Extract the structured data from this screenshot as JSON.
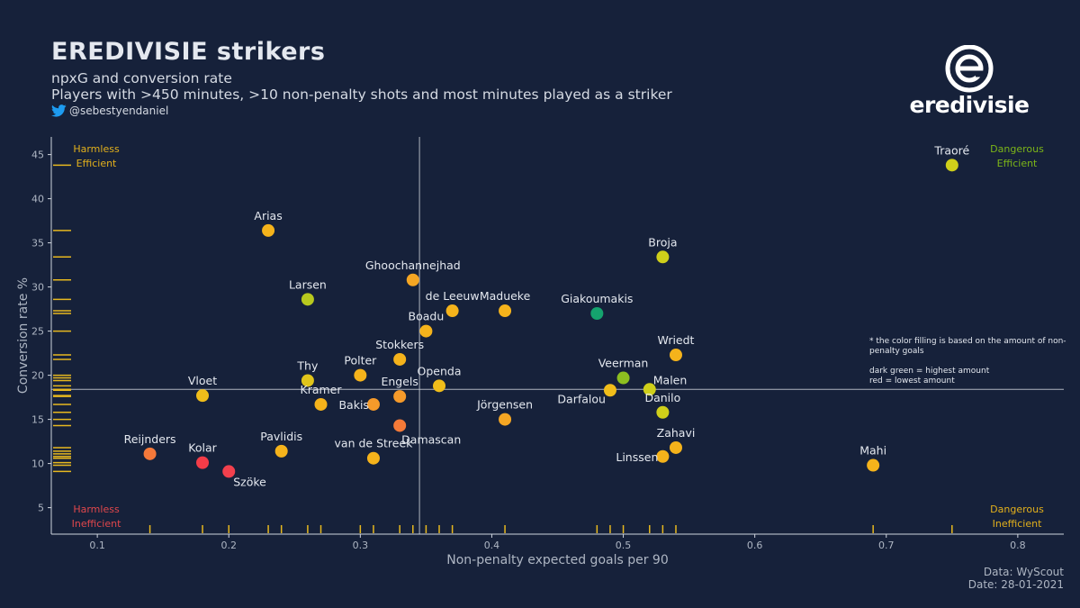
{
  "header": {
    "title": "EREDIVISIE strikers",
    "subtitle1": "npxG and conversion rate",
    "subtitle2": "Players with >450 minutes, >10 non-penalty shots and most minutes played as a striker",
    "handle": "@sebestyendaniel",
    "handle_icon": "twitter-bird-icon"
  },
  "logo": {
    "word": "eredivisie",
    "icon": "eredivisie-e-logo-icon"
  },
  "note": {
    "line1": "* the color filling is based on the amount of non-penalty goals",
    "line2": "dark green = highest amount",
    "line3": "red = lowest amount"
  },
  "credits": {
    "data": "Data: WyScout",
    "date": "Date: 28-01-2021"
  },
  "colors": {
    "background": "#16213a",
    "axis": "#cfd5de",
    "rug": "#e7b81f",
    "harmless_efficient": "#e2b01c",
    "dangerous_efficient": "#7cb518",
    "harmless_inefficient": "#e0474c",
    "dangerous_inefficient": "#e2b01c"
  },
  "chart_data": {
    "type": "scatter",
    "xlabel": "Non-penalty expected goals per 90",
    "ylabel": "Conversion rate %",
    "xlim": [
      0.065,
      0.835
    ],
    "ylim": [
      2.0,
      47.0
    ],
    "xticks": [
      0.1,
      0.2,
      0.3,
      0.4,
      0.5,
      0.6,
      0.7,
      0.8
    ],
    "yticks": [
      5,
      10,
      15,
      20,
      25,
      30,
      35,
      40,
      45
    ],
    "xtick_labels": [
      "0.1",
      "0.2",
      "0.3",
      "0.4",
      "0.5",
      "0.6",
      "0.7",
      "0.8"
    ],
    "ytick_labels": [
      "5",
      "10",
      "15",
      "20",
      "25",
      "30",
      "35",
      "40",
      "45"
    ],
    "reference_lines": {
      "x": 0.345,
      "y": 18.4
    },
    "quadrants": [
      {
        "lines": [
          "Harmless",
          "Efficient"
        ],
        "position": "top-left",
        "color": "#e2b01c"
      },
      {
        "lines": [
          "Dangerous",
          "Efficient"
        ],
        "position": "top-right",
        "color": "#7cb518"
      },
      {
        "lines": [
          "Harmless",
          "Inefficient"
        ],
        "position": "bottom-left",
        "color": "#e0474c"
      },
      {
        "lines": [
          "Dangerous",
          "Inefficient"
        ],
        "position": "bottom-right",
        "color": "#e2b01c"
      }
    ],
    "points": [
      {
        "name": "Traoré",
        "x": 0.75,
        "y": 43.8,
        "color": "#cfcf1a",
        "label": "above"
      },
      {
        "name": "Arias",
        "x": 0.23,
        "y": 36.4,
        "color": "#f5b31b",
        "label": "above"
      },
      {
        "name": "Broja",
        "x": 0.53,
        "y": 33.4,
        "color": "#cfcf1a",
        "label": "above"
      },
      {
        "name": "Ghoochannejhad",
        "x": 0.34,
        "y": 30.8,
        "color": "#f5a623",
        "label": "above"
      },
      {
        "name": "Larsen",
        "x": 0.26,
        "y": 28.6,
        "color": "#b8c91e",
        "label": "above"
      },
      {
        "name": "de Leeuw",
        "x": 0.37,
        "y": 27.3,
        "color": "#f5b31b",
        "label": "above"
      },
      {
        "name": "Madueke",
        "x": 0.41,
        "y": 27.3,
        "color": "#f5b31b",
        "label": "above"
      },
      {
        "name": "Giakoumakis",
        "x": 0.48,
        "y": 27.0,
        "color": "#15a36e",
        "label": "above"
      },
      {
        "name": "Boadu",
        "x": 0.35,
        "y": 25.0,
        "color": "#f5b31b",
        "label": "above"
      },
      {
        "name": "Wriedt",
        "x": 0.54,
        "y": 22.3,
        "color": "#f5b31b",
        "label": "above"
      },
      {
        "name": "Stokkers",
        "x": 0.33,
        "y": 21.8,
        "color": "#f5b31b",
        "label": "above"
      },
      {
        "name": "Polter",
        "x": 0.3,
        "y": 20.0,
        "color": "#f5b31b",
        "label": "above"
      },
      {
        "name": "Veerman",
        "x": 0.5,
        "y": 19.7,
        "color": "#8dbf20",
        "label": "above"
      },
      {
        "name": "Thy",
        "x": 0.26,
        "y": 19.4,
        "color": "#e0c41a",
        "label": "above"
      },
      {
        "name": "Openda",
        "x": 0.36,
        "y": 18.8,
        "color": "#f0bd1a",
        "label": "above"
      },
      {
        "name": "Vloet",
        "x": 0.18,
        "y": 17.7,
        "color": "#f0bd1a",
        "label": "above"
      },
      {
        "name": "Malen",
        "x": 0.52,
        "y": 18.4,
        "color": "#cfcf1a",
        "label": "right"
      },
      {
        "name": "Darfalou",
        "x": 0.49,
        "y": 18.3,
        "color": "#f0bd1a",
        "label": "below-left"
      },
      {
        "name": "Engels",
        "x": 0.33,
        "y": 17.6,
        "color": "#f59a2a",
        "label": "above"
      },
      {
        "name": "Kramer",
        "x": 0.27,
        "y": 16.7,
        "color": "#f5b31b",
        "label": "above"
      },
      {
        "name": "Bakis",
        "x": 0.31,
        "y": 16.7,
        "color": "#f59a2a",
        "label": "left"
      },
      {
        "name": "Danilo",
        "x": 0.53,
        "y": 15.8,
        "color": "#cfcf1a",
        "label": "above"
      },
      {
        "name": "Jörgensen",
        "x": 0.41,
        "y": 15.0,
        "color": "#f5a623",
        "label": "above"
      },
      {
        "name": "Damascan",
        "x": 0.33,
        "y": 14.3,
        "color": "#f57a38",
        "label": "below"
      },
      {
        "name": "Zahavi",
        "x": 0.54,
        "y": 11.8,
        "color": "#f5b31b",
        "label": "above"
      },
      {
        "name": "Reijnders",
        "x": 0.14,
        "y": 11.1,
        "color": "#f5793a",
        "label": "above"
      },
      {
        "name": "Pavlidis",
        "x": 0.24,
        "y": 11.4,
        "color": "#f5b31b",
        "label": "above"
      },
      {
        "name": "Linssen",
        "x": 0.53,
        "y": 10.8,
        "color": "#f5b31b",
        "label": "left"
      },
      {
        "name": "van de Streek",
        "x": 0.31,
        "y": 10.6,
        "color": "#f5b31b",
        "label": "above"
      },
      {
        "name": "Kolar",
        "x": 0.18,
        "y": 10.1,
        "color": "#f43c48",
        "label": "above"
      },
      {
        "name": "Mahi",
        "x": 0.69,
        "y": 9.8,
        "color": "#f5b31b",
        "label": "above"
      },
      {
        "name": "Szöke",
        "x": 0.2,
        "y": 9.1,
        "color": "#f2404d",
        "label": "below-right"
      }
    ],
    "rug_x": [
      0.14,
      0.18,
      0.2,
      0.23,
      0.24,
      0.26,
      0.27,
      0.3,
      0.31,
      0.33,
      0.34,
      0.35,
      0.36,
      0.37,
      0.41,
      0.48,
      0.49,
      0.5,
      0.52,
      0.53,
      0.54,
      0.69,
      0.75
    ],
    "rug_y": [
      43.8,
      36.4,
      33.4,
      30.8,
      28.6,
      27.3,
      27.0,
      25.0,
      22.3,
      21.8,
      20.0,
      19.7,
      19.4,
      18.8,
      18.4,
      18.3,
      17.7,
      17.6,
      16.7,
      15.8,
      15.0,
      14.3,
      11.8,
      11.4,
      11.1,
      10.8,
      10.6,
      10.1,
      9.8,
      9.1
    ]
  }
}
